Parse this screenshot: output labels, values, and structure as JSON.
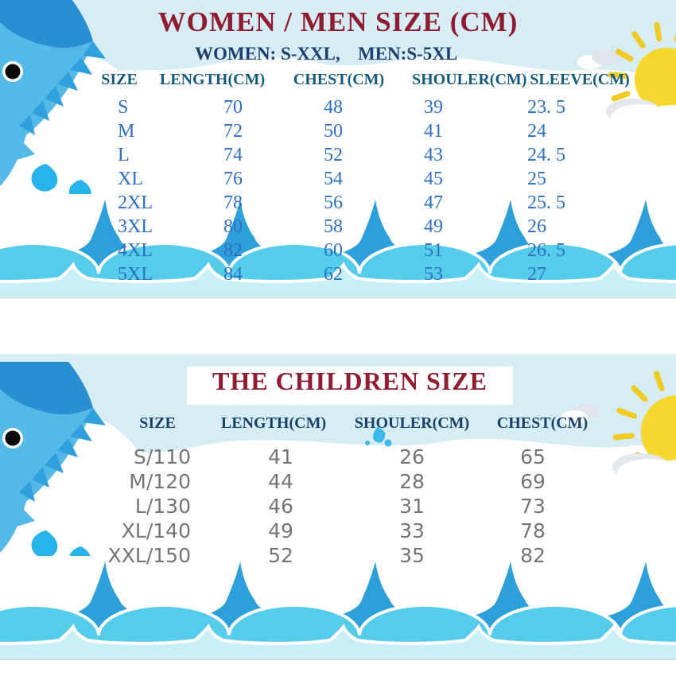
{
  "colors": {
    "sky": "#d7edf5",
    "title": "#8f1c30",
    "navy": "#1d3e6f",
    "head1": "#175a80",
    "head2": "#1a4168",
    "data1": "#2e6fc2",
    "data2": "#757575",
    "wave_dark": "#2d9fd9",
    "wave_cyan": "#55cdea",
    "wave_light": "#c9f0f7",
    "shark_dark": "#2a8fd2",
    "shark_light": "#55b9e7",
    "sun": "#f6d72e"
  },
  "section_women_men": {
    "title": "WOMEN / MEN SIZE (CM)",
    "subtitle_women": "WOMEN: S-XXL,",
    "subtitle_men": "MEN:S-5XL",
    "columns": [
      "SIZE",
      "LENGTH(CM)",
      "CHEST(CM)",
      "SHOULER(CM)",
      "SLEEVE(CM)"
    ],
    "rows": [
      [
        "S",
        "70",
        "48",
        "39",
        "23. 5"
      ],
      [
        "M",
        "72",
        "50",
        "41",
        "24"
      ],
      [
        "L",
        "74",
        "52",
        "43",
        "24. 5"
      ],
      [
        "XL",
        "76",
        "54",
        "45",
        "25"
      ],
      [
        "2XL",
        "78",
        "56",
        "47",
        "25. 5"
      ],
      [
        "3XL",
        "80",
        "58",
        "49",
        "26"
      ],
      [
        "4XL",
        "82",
        "60",
        "51",
        "26. 5"
      ],
      [
        "5XL",
        "84",
        "62",
        "53",
        "27"
      ]
    ]
  },
  "section_children": {
    "title": "THE CHILDREN SIZE",
    "columns": [
      "SIZE",
      "LENGTH(CM)",
      "SHOULER(CM)",
      "CHEST(CM)"
    ],
    "rows": [
      [
        "S/110",
        "41",
        "26",
        "65"
      ],
      [
        "M/120",
        "44",
        "28",
        "69"
      ],
      [
        "L/130",
        "46",
        "31",
        "73"
      ],
      [
        "XL/140",
        "49",
        "33",
        "78"
      ],
      [
        "XXL/150",
        "52",
        "35",
        "82"
      ]
    ]
  },
  "decor": {
    "shark": "cartoon-shark",
    "sun": "sun-with-clouds",
    "waves": "ocean-waves"
  },
  "chart_data": [
    {
      "type": "table",
      "title": "WOMEN / MEN SIZE (CM)",
      "subtitle": "WOMEN: S-XXL, MEN:S-5XL",
      "columns": [
        "SIZE",
        "LENGTH(CM)",
        "CHEST(CM)",
        "SHOULER(CM)",
        "SLEEVE(CM)"
      ],
      "rows": [
        [
          "S",
          70,
          48,
          39,
          23.5
        ],
        [
          "M",
          72,
          50,
          41,
          24
        ],
        [
          "L",
          74,
          52,
          43,
          24.5
        ],
        [
          "XL",
          76,
          54,
          45,
          25
        ],
        [
          "2XL",
          78,
          56,
          47,
          25.5
        ],
        [
          "3XL",
          80,
          58,
          49,
          26
        ],
        [
          "4XL",
          82,
          60,
          51,
          26.5
        ],
        [
          "5XL",
          84,
          62,
          53,
          27
        ]
      ]
    },
    {
      "type": "table",
      "title": "THE CHILDREN SIZE",
      "columns": [
        "SIZE",
        "LENGTH(CM)",
        "SHOULER(CM)",
        "CHEST(CM)"
      ],
      "rows": [
        [
          "S/110",
          41,
          26,
          65
        ],
        [
          "M/120",
          44,
          28,
          69
        ],
        [
          "L/130",
          46,
          31,
          73
        ],
        [
          "XL/140",
          49,
          33,
          78
        ],
        [
          "XXL/150",
          52,
          35,
          82
        ]
      ]
    }
  ]
}
